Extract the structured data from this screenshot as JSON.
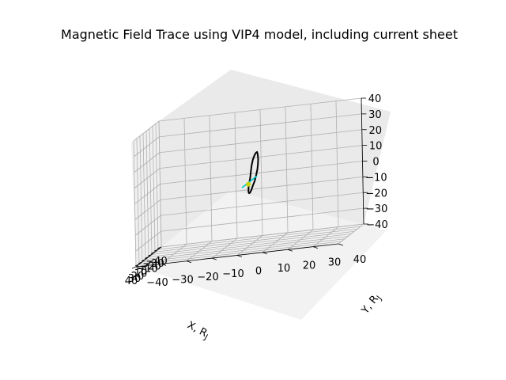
{
  "chart_data": {
    "type": "line",
    "projection": "3d",
    "title": "Magnetic Field Trace using VIP4 model, including current sheet",
    "xlabel": "X, R_J",
    "ylabel": "Y, R_J",
    "zlabel": "",
    "xlim": [
      -40,
      40
    ],
    "ylim": [
      -40,
      40
    ],
    "zlim": [
      -40,
      40
    ],
    "xticks": [
      "−40",
      "−30",
      "−20",
      "−10",
      "0",
      "10",
      "20",
      "30",
      "40"
    ],
    "yticks": [
      "−40",
      "−30",
      "−20",
      "−10",
      "0",
      "10",
      "20",
      "30",
      "40"
    ],
    "zticks": [
      "−40",
      "−30",
      "−20",
      "−10",
      "0",
      "10",
      "20",
      "30",
      "40"
    ],
    "grid": true,
    "series": [
      {
        "kind": "field-line",
        "color": "#000000",
        "x": [
          -5,
          -7,
          -10,
          -14,
          -19,
          -24,
          -28,
          -30,
          -31,
          -30,
          -28,
          -24,
          -19,
          -13,
          -8,
          -4,
          -1,
          1,
          1,
          -1,
          -5
        ],
        "y": [
          0,
          0,
          0,
          0,
          0,
          0,
          0,
          0,
          0,
          0,
          0,
          0,
          0,
          0,
          0,
          0,
          0,
          0,
          0,
          0,
          0
        ],
        "z": [
          2,
          5,
          9,
          12,
          14,
          15,
          15,
          13,
          10,
          7,
          4,
          1,
          -2,
          -4,
          -6,
          -7,
          -7,
          -6,
          -4,
          -1,
          2
        ]
      },
      {
        "kind": "current-sheet",
        "color": "#00c8c8",
        "x": [
          -25,
          20
        ],
        "y": [
          0,
          0
        ],
        "z": [
          0,
          0
        ]
      },
      {
        "kind": "planet-marker",
        "color": "#c8d200",
        "x": [
          1
        ],
        "y": [
          0
        ],
        "z": [
          -1
        ]
      }
    ]
  }
}
